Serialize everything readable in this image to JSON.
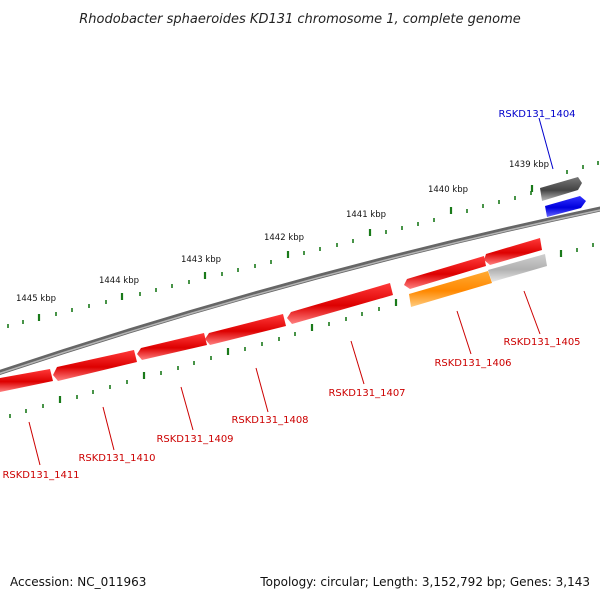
{
  "title": "Rhodobacter sphaeroides KD131 chromosome 1, complete genome",
  "footer": {
    "accession": "Accession: NC_011963",
    "summary": "Topology: circular; Length: 3,152,792 bp; Genes: 3,143"
  },
  "colors": {
    "label_red": "#cc0000",
    "label_blue": "#0000cc",
    "gene_red": "#ee0000",
    "gene_orange": "#ff8c00",
    "gene_gray": "#bbbbbb",
    "gene_darkgray": "#555555",
    "gene_blue": "#0000ee",
    "tick_green": "#1a7a1a",
    "backbone": "#888888"
  },
  "scale_labels": [
    "1439 kbp",
    "1440 kbp",
    "1441 kbp",
    "1442 kbp",
    "1443 kbp",
    "1444 kbp",
    "1445 kbp"
  ],
  "genes": [
    {
      "id": "RSKD131_1404",
      "label": "RSKD131_1404"
    },
    {
      "id": "RSKD131_1405",
      "label": "RSKD131_1405"
    },
    {
      "id": "RSKD131_1406",
      "label": "RSKD131_1406"
    },
    {
      "id": "RSKD131_1407",
      "label": "RSKD131_1407"
    },
    {
      "id": "RSKD131_1408",
      "label": "RSKD131_1408"
    },
    {
      "id": "RSKD131_1409",
      "label": "RSKD131_1409"
    },
    {
      "id": "RSKD131_1410",
      "label": "RSKD131_1410"
    },
    {
      "id": "RSKD131_1411",
      "label": "RSKD131_1411"
    }
  ]
}
